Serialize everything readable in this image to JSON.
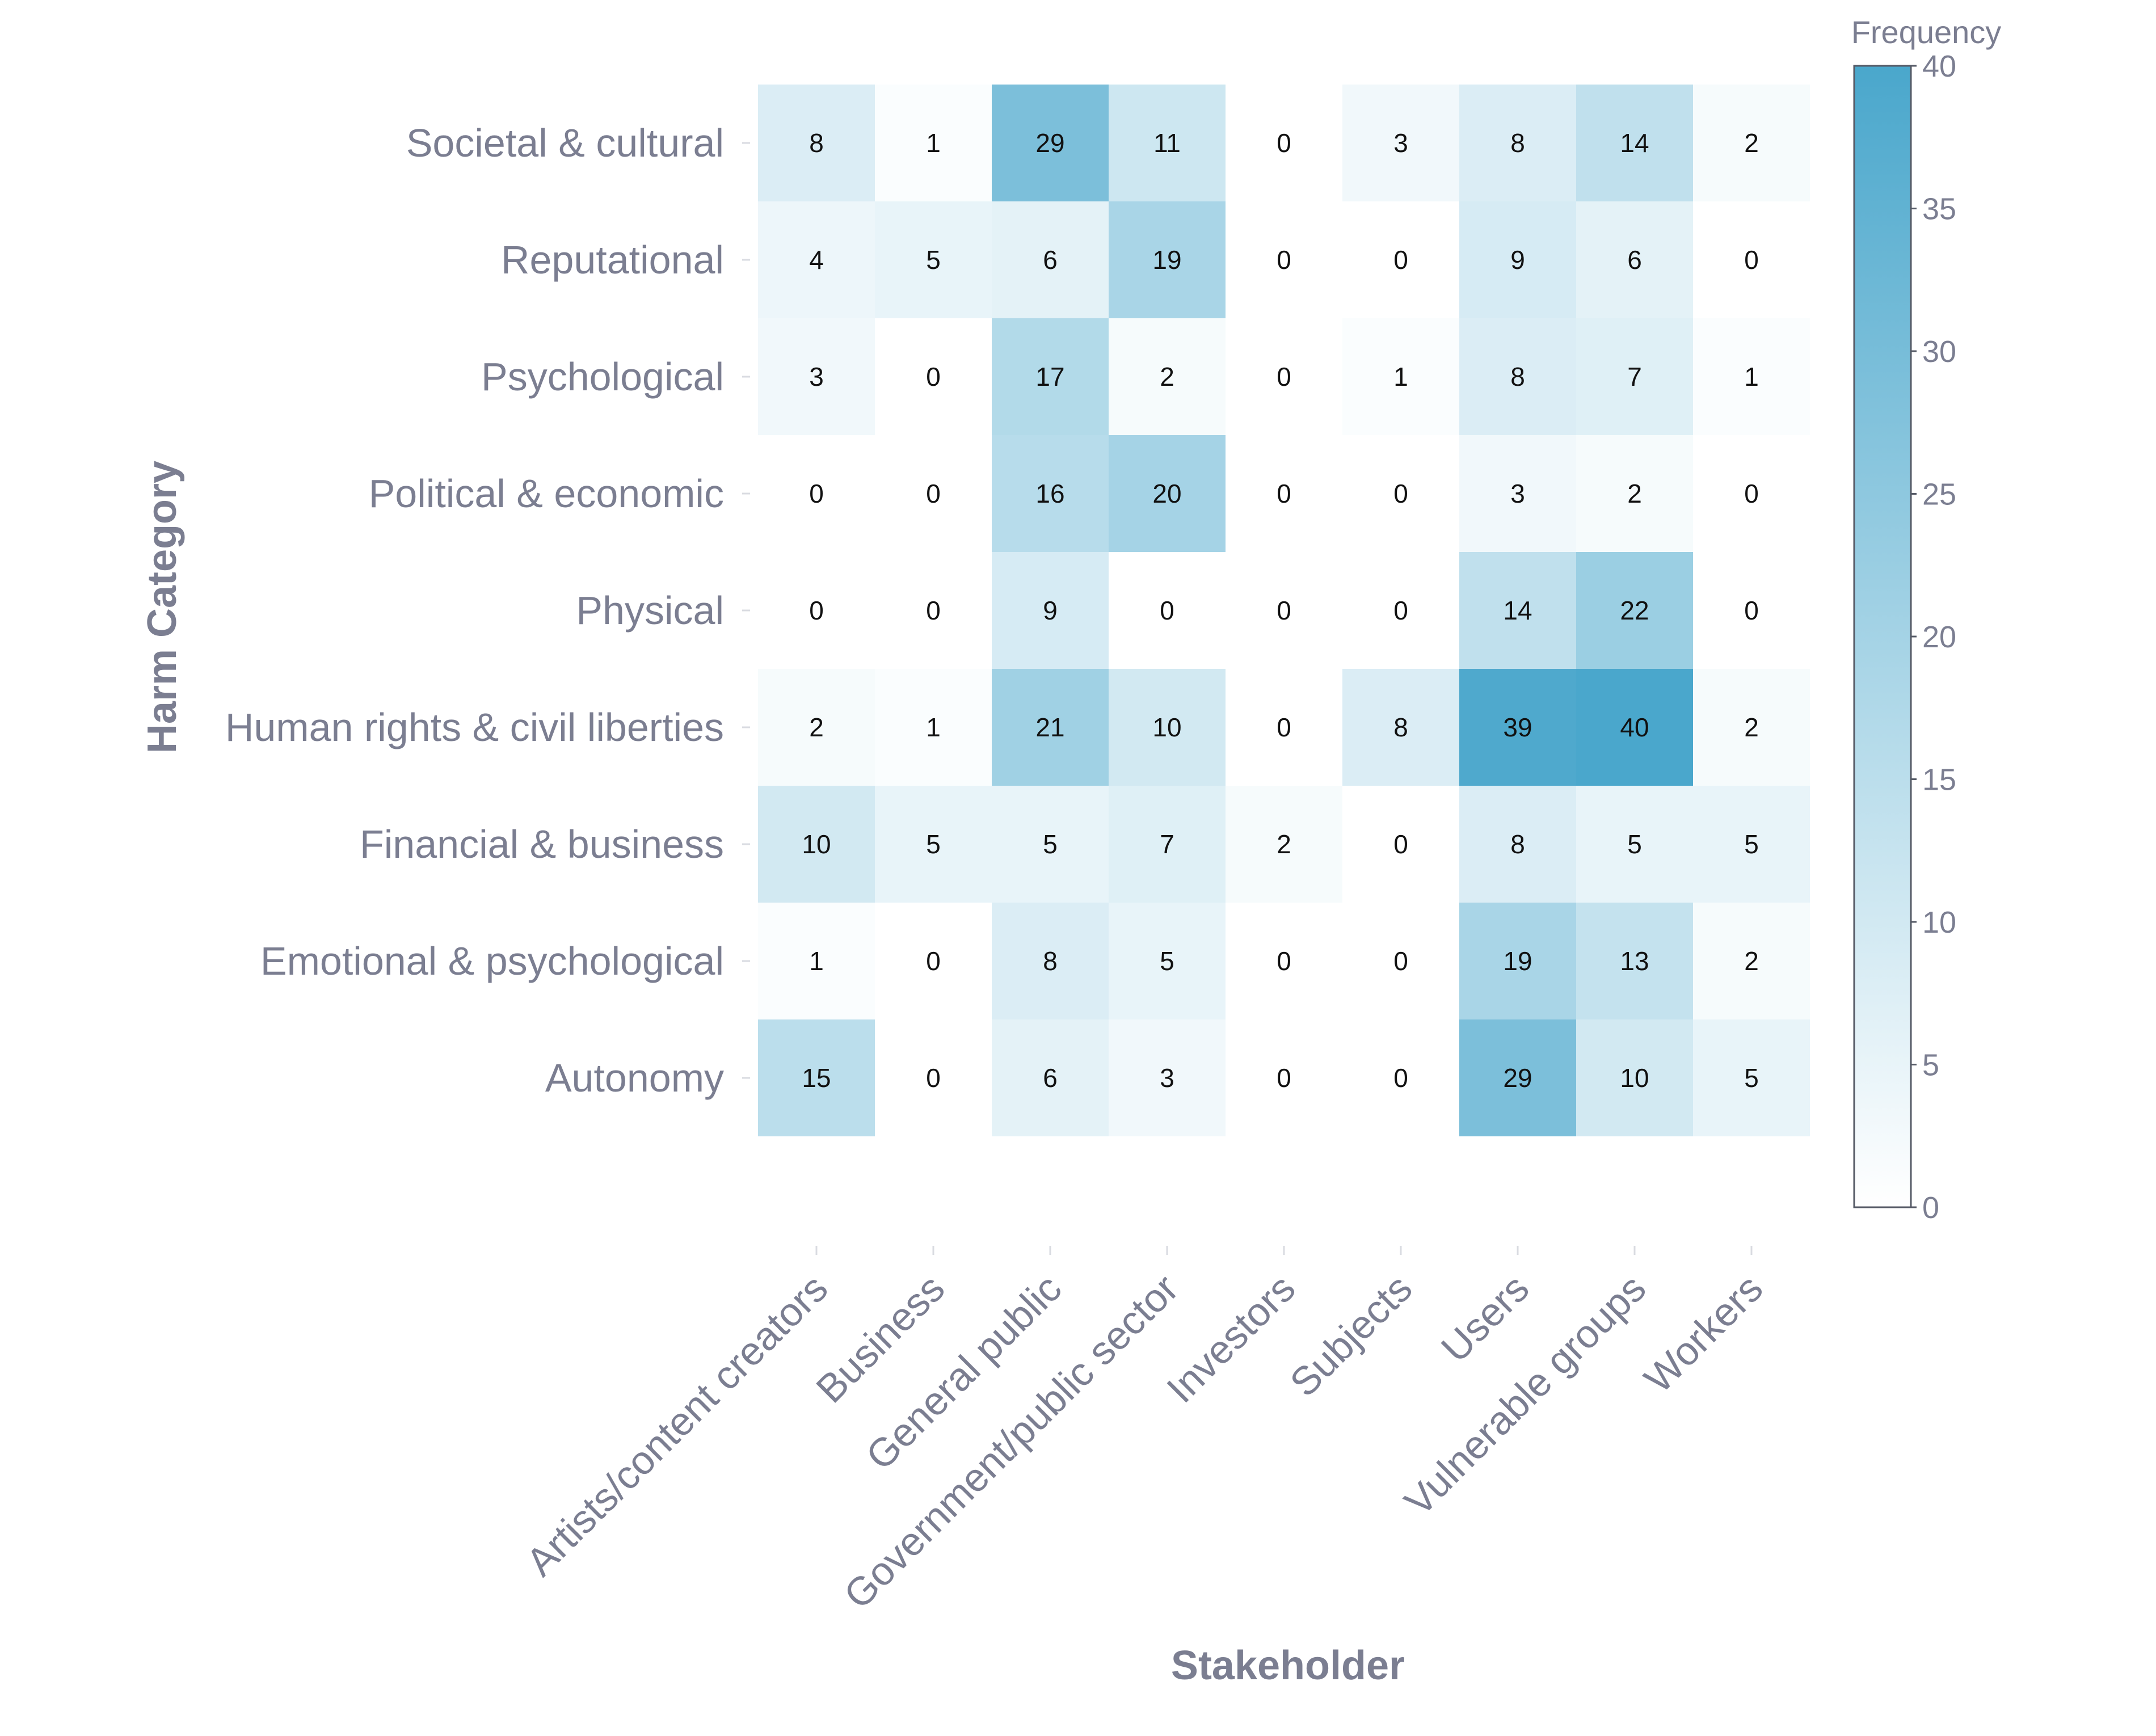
{
  "chart_data": {
    "type": "heatmap",
    "title": "",
    "xlabel": "Stakeholder",
    "ylabel": "Harm Category",
    "colorbar": {
      "title": "Frequency",
      "range": [
        0,
        40
      ],
      "ticks": [
        0,
        5,
        10,
        15,
        20,
        25,
        30,
        35,
        40
      ],
      "color_low": "#ffffff",
      "color_high": "#4aa7cc"
    },
    "x_categories": [
      "Artists/content creators",
      "Business",
      "General public",
      "Government/public sector",
      "Investors",
      "Subjects",
      "Users",
      "Vulnerable groups",
      "Workers"
    ],
    "y_categories": [
      "Societal & cultural",
      "Reputational",
      "Psychological",
      "Political & economic",
      "Physical",
      "Human rights & civil liberties",
      "Financial & business",
      "Emotional & psychological",
      "Autonomy"
    ],
    "values": [
      [
        8,
        1,
        29,
        11,
        0,
        3,
        8,
        14,
        2
      ],
      [
        4,
        5,
        6,
        19,
        0,
        0,
        9,
        6,
        0
      ],
      [
        3,
        0,
        17,
        2,
        0,
        1,
        8,
        7,
        1
      ],
      [
        0,
        0,
        16,
        20,
        0,
        0,
        3,
        2,
        0
      ],
      [
        0,
        0,
        9,
        0,
        0,
        0,
        14,
        22,
        0
      ],
      [
        2,
        1,
        21,
        10,
        0,
        8,
        39,
        40,
        2
      ],
      [
        10,
        5,
        5,
        7,
        2,
        0,
        8,
        5,
        5
      ],
      [
        1,
        0,
        8,
        5,
        0,
        0,
        19,
        13,
        2
      ],
      [
        15,
        0,
        6,
        3,
        0,
        0,
        29,
        10,
        5
      ]
    ]
  }
}
